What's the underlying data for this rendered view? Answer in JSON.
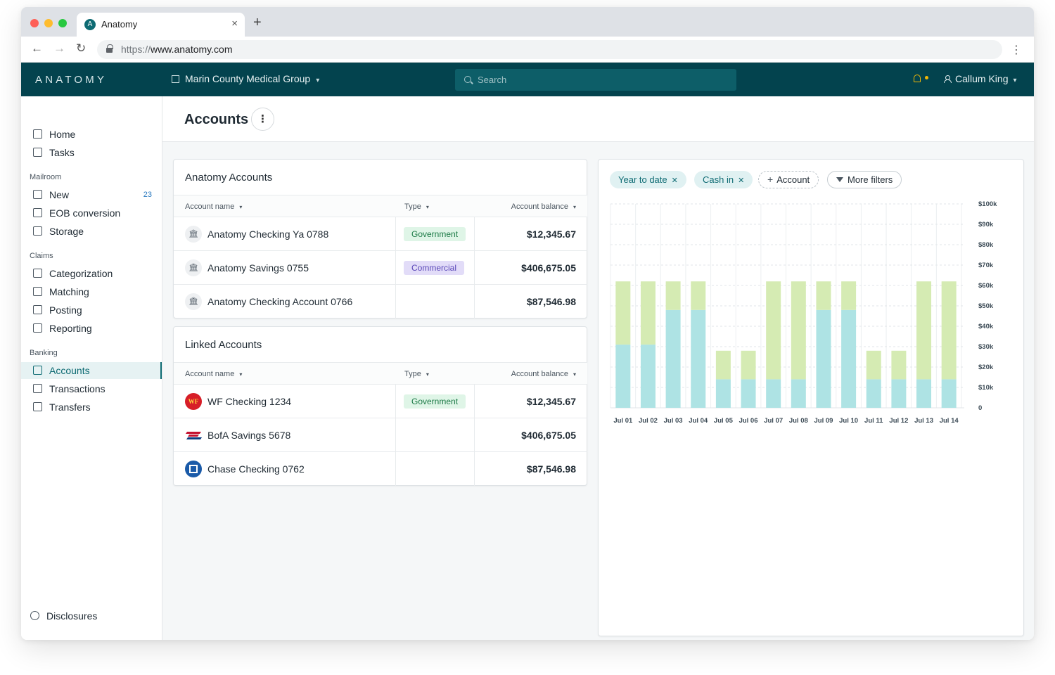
{
  "browser": {
    "tab_title": "Anatomy",
    "tab_favicon": "A",
    "url_protocol": "https://",
    "url_host": "www.anatomy.com"
  },
  "header": {
    "logo": "ANATOMY",
    "org_name": "Marin County Medical Group",
    "search_placeholder": "Search",
    "user_name": "Callum King",
    "brand_color": "#03434e"
  },
  "sidebar": {
    "top_items": [
      {
        "label": "Home",
        "icon": "home-icon"
      },
      {
        "label": "Tasks",
        "icon": "tasks-icon"
      }
    ],
    "sections": [
      {
        "label": "Mailroom",
        "items": [
          {
            "label": "New",
            "icon": "inbox-icon",
            "count": "23"
          },
          {
            "label": "EOB conversion",
            "icon": "convert-icon"
          },
          {
            "label": "Storage",
            "icon": "box-icon"
          }
        ]
      },
      {
        "label": "Claims",
        "items": [
          {
            "label": "Categorization",
            "icon": "columns-icon"
          },
          {
            "label": "Matching",
            "icon": "check-square-icon"
          },
          {
            "label": "Posting",
            "icon": "thumbs-up-icon"
          },
          {
            "label": "Reporting",
            "icon": "bar-chart-icon"
          }
        ]
      },
      {
        "label": "Banking",
        "items": [
          {
            "label": "Accounts",
            "icon": "bank-icon",
            "active": true
          },
          {
            "label": "Transactions",
            "icon": "swap-icon"
          },
          {
            "label": "Transfers",
            "icon": "transfer-icon"
          }
        ]
      }
    ],
    "footer_item": {
      "label": "Disclosures",
      "icon": "help-circle-icon"
    }
  },
  "page": {
    "title": "Accounts",
    "menu_glyph": "⋮"
  },
  "anatomy_accounts": {
    "title": "Anatomy Accounts",
    "columns": [
      "Account name",
      "Type",
      "Account balance"
    ],
    "rows": [
      {
        "name": "Anatomy Checking Ya 0788",
        "type": "Government",
        "balance": "$12,345.67"
      },
      {
        "name": "Anatomy Savings 0755",
        "type": "Commercial",
        "balance": "$406,675.05"
      },
      {
        "name": "Anatomy Checking Account 0766",
        "type": "",
        "balance": "$87,546.98"
      }
    ]
  },
  "linked_accounts": {
    "title": "Linked Accounts",
    "columns": [
      "Account name",
      "Type",
      "Account balance"
    ],
    "rows": [
      {
        "name": "WF Checking 1234",
        "type": "Government",
        "balance": "$12,345.67",
        "logo": "WF"
      },
      {
        "name": "BofA Savings 5678",
        "type": "",
        "balance": "$406,675.05",
        "logo": "bofa"
      },
      {
        "name": "Chase Checking 0762",
        "type": "",
        "balance": "$87,546.98",
        "logo": "chase"
      }
    ]
  },
  "filters": {
    "chips": [
      {
        "label": "Year to date",
        "removable": true
      },
      {
        "label": "Cash in",
        "removable": true
      }
    ],
    "add_account_label": "Account",
    "more_filters_label": "More filters"
  },
  "chart_data": {
    "type": "bar",
    "stacked": true,
    "categories": [
      "Jul 01",
      "Jul 02",
      "Jul 03",
      "Jul 04",
      "Jul 05",
      "Jul 06",
      "Jul 07",
      "Jul 08",
      "Jul 09",
      "Jul 10",
      "Jul 11",
      "Jul 12",
      "Jul 13",
      "Jul 14"
    ],
    "series": [
      {
        "color": "#aee3e4",
        "values": [
          31,
          31,
          48,
          48,
          14,
          14,
          14,
          14,
          48,
          48,
          14,
          14,
          14,
          14
        ]
      },
      {
        "color": "#d5ebb3",
        "values": [
          31,
          31,
          14,
          14,
          14,
          14,
          48,
          48,
          14,
          14,
          14,
          14,
          48,
          48
        ]
      }
    ],
    "ylim": [
      0,
      100
    ],
    "y_ticks": [
      "0",
      "$10k",
      "$20k",
      "$30k",
      "$40k",
      "$50k",
      "$60k",
      "$70k",
      "$80k",
      "$90k",
      "$100k"
    ],
    "y_axis_side": "right",
    "grid": true
  }
}
